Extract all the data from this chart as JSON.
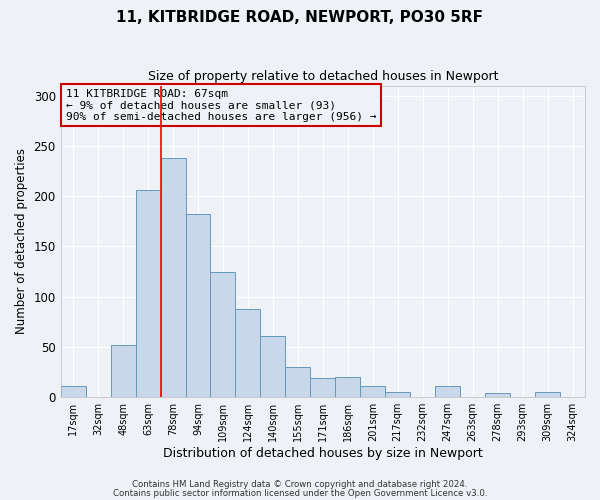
{
  "title": "11, KITBRIDGE ROAD, NEWPORT, PO30 5RF",
  "subtitle": "Size of property relative to detached houses in Newport",
  "xlabel": "Distribution of detached houses by size in Newport",
  "ylabel": "Number of detached properties",
  "bar_labels": [
    "17sqm",
    "32sqm",
    "48sqm",
    "63sqm",
    "78sqm",
    "94sqm",
    "109sqm",
    "124sqm",
    "140sqm",
    "155sqm",
    "171sqm",
    "186sqm",
    "201sqm",
    "217sqm",
    "232sqm",
    "247sqm",
    "263sqm",
    "278sqm",
    "293sqm",
    "309sqm",
    "324sqm"
  ],
  "bar_values": [
    11,
    0,
    52,
    206,
    238,
    182,
    125,
    88,
    61,
    30,
    19,
    20,
    11,
    5,
    0,
    11,
    0,
    4,
    0,
    5,
    0
  ],
  "bar_color": "#c8d8ea",
  "bar_edge_color": "#6699bb",
  "ylim": [
    0,
    310
  ],
  "yticks": [
    0,
    50,
    100,
    150,
    200,
    250,
    300
  ],
  "property_label": "11 KITBRIDGE ROAD: 67sqm",
  "annotation_line1": "← 9% of detached houses are smaller (93)",
  "annotation_line2": "90% of semi-detached houses are larger (956) →",
  "vline_x_index": 3.5,
  "box_color": "#cc0000",
  "footer_line1": "Contains HM Land Registry data © Crown copyright and database right 2024.",
  "footer_line2": "Contains public sector information licensed under the Open Government Licence v3.0.",
  "background_color": "#eef2f7",
  "grid_color": "#ffffff"
}
